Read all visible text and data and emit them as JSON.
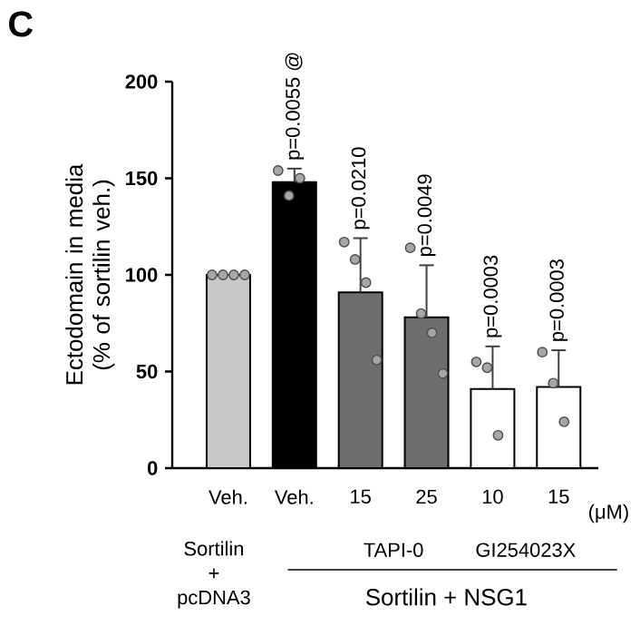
{
  "chart_data": {
    "type": "bar",
    "title": "C",
    "ylabel": "Ectodomain in media (% of sortilin veh.)",
    "categories": [
      "Veh.",
      "Veh.",
      "15",
      "25",
      "10",
      "15"
    ],
    "values": [
      100,
      148,
      91,
      78,
      41,
      42
    ],
    "colors": [
      "#c8c8c8",
      "#000000",
      "#6e6e6e",
      "#6e6e6e",
      "#ffffff",
      "#ffffff"
    ],
    "errors": [
      null,
      7,
      28,
      27,
      22,
      19
    ],
    "ylim": [
      0,
      200
    ],
    "yticks": [
      0,
      50,
      100,
      150,
      200
    ],
    "series": [
      {
        "type": "scatter",
        "marker": "circle",
        "color": "#a6a6a6",
        "values": [
          100,
          154,
          117,
          114,
          55,
          60
        ]
      },
      {
        "type": "scatter",
        "marker": "circle",
        "color": "#a6a6a6",
        "values": [
          100,
          141,
          108,
          80,
          52,
          44
        ]
      },
      {
        "type": "scatter",
        "marker": "circle",
        "color": "#a6a6a6",
        "values": [
          100,
          150,
          96,
          70,
          17,
          24
        ]
      },
      {
        "type": "scatter",
        "marker": "circle",
        "color": "#a6a6a6",
        "values": [
          100,
          null,
          56,
          49,
          null,
          null
        ]
      }
    ],
    "annotations": [
      "p=0.0055 @",
      "p=0.0210",
      "p=0.0049",
      "p=0.0003",
      "p=0.0003",
      "(μM)",
      "Sortilin + pcDNA3",
      "TAPI-0",
      "GI254023X",
      "Sortilin + NSG1"
    ]
  }
}
